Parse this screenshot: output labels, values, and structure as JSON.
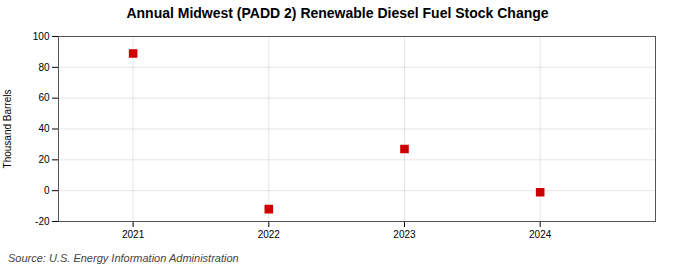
{
  "chart_data": {
    "type": "scatter",
    "title": "Annual Midwest (PADD 2) Renewable Diesel Fuel Stock Change",
    "ylabel": "Thousand Barrels",
    "source": "Source: U.S. Energy Information Administration",
    "x": [
      2021,
      2022,
      2023,
      2024
    ],
    "values": [
      89,
      -12,
      27,
      -1
    ],
    "xlim": [
      2020.45,
      2024.85
    ],
    "xticks": [
      2021,
      2022,
      2023,
      2024
    ],
    "ylim": [
      -20,
      100
    ],
    "yticks": [
      -20,
      0,
      20,
      40,
      60,
      80,
      100
    ],
    "color": "#cc0000",
    "marker": "square",
    "grid": true
  }
}
